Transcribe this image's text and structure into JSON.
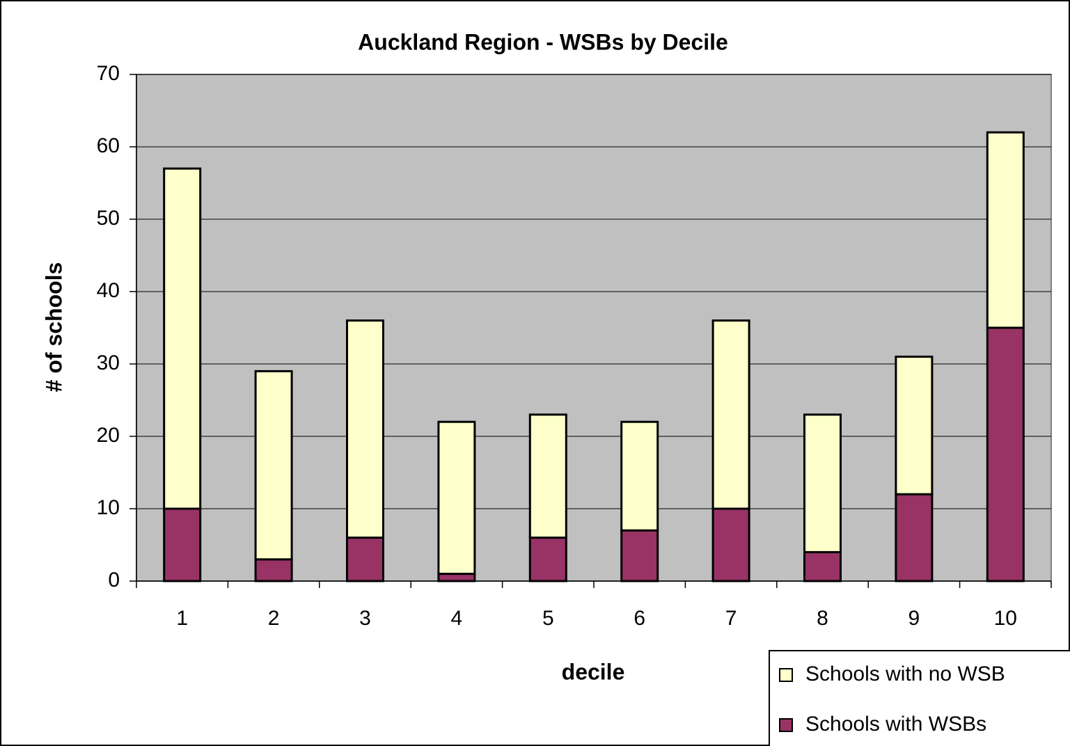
{
  "chart_data": {
    "type": "stacked_bar",
    "title": "Auckland Region - WSBs by Decile",
    "x_label": "decile",
    "y_label": "# of schools",
    "categories": [
      "1",
      "2",
      "3",
      "4",
      "5",
      "6",
      "7",
      "8",
      "9",
      "10"
    ],
    "series": [
      {
        "name": "Schools with WSBs",
        "color": "#993366",
        "values": [
          10,
          3,
          6,
          1,
          6,
          7,
          10,
          4,
          12,
          35
        ]
      },
      {
        "name": "Schools with no WSB",
        "color": "#ffffcc",
        "values": [
          47,
          26,
          30,
          21,
          17,
          15,
          26,
          19,
          19,
          27
        ]
      }
    ],
    "ylim": [
      0,
      70
    ],
    "yticks": [
      0,
      10,
      20,
      30,
      40,
      50,
      60,
      70
    ],
    "grid": true,
    "plot_background": "#c0c0c0",
    "legend_position": "lower right"
  }
}
